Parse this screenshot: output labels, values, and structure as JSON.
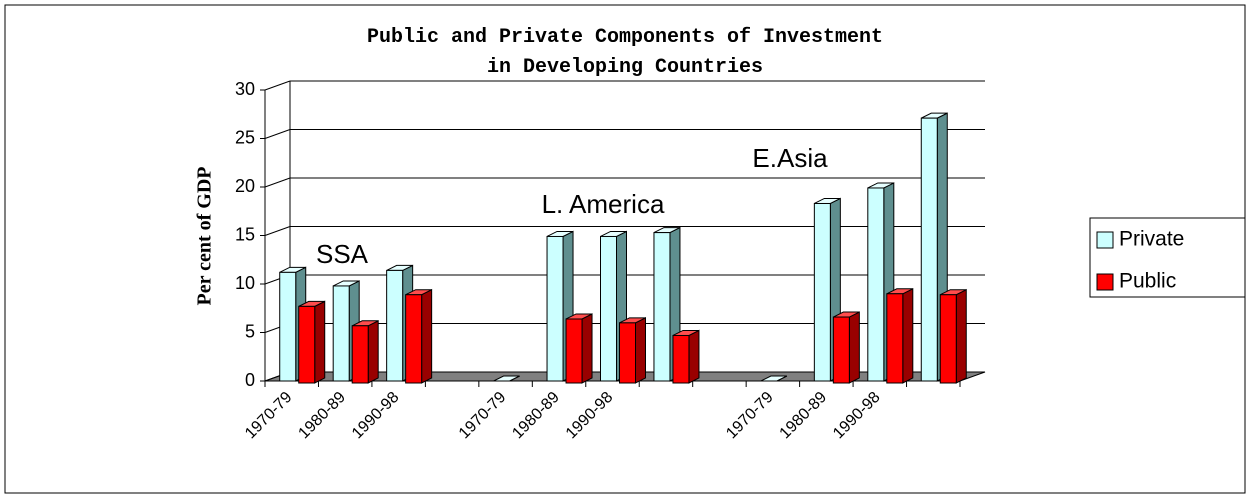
{
  "chart_data": {
    "type": "bar3d",
    "title": "Public and Private Components of Investment in Developing Countries",
    "y_label": "Per cent of GDP",
    "categories": [
      "1970-79",
      "1980-89",
      "1990-98",
      null,
      "1970-79",
      "1980-89",
      "1990-98",
      null,
      null,
      "1970-79",
      "1980-89",
      "1990-98",
      null
    ],
    "series": [
      {
        "name": "Private",
        "color": "#ccffff",
        "values": [
          11.2,
          9.8,
          11.4,
          null,
          0,
          14.9,
          14.9,
          15.3,
          null,
          0,
          18.3,
          19.9,
          27.1
        ]
      },
      {
        "name": "Public",
        "color": "#ff0000",
        "values": [
          7.9,
          5.9,
          9.1,
          null,
          null,
          6.6,
          6.2,
          4.9,
          null,
          null,
          6.8,
          9.2,
          9.1
        ]
      }
    ],
    "annotations": [
      "SSA",
      "L. America",
      "E.Asia"
    ],
    "ylim": [
      0,
      30
    ],
    "yticks": [
      0,
      5,
      10,
      15,
      20,
      25,
      30
    ],
    "grid": true,
    "legend": "right"
  }
}
